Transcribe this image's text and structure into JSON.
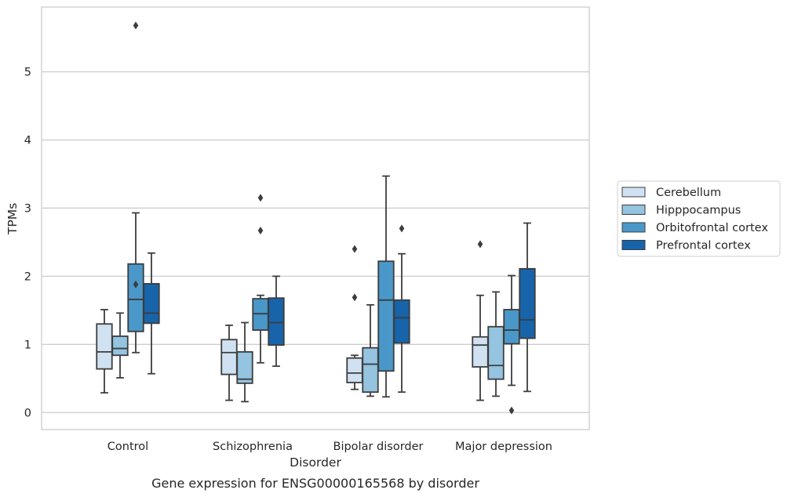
{
  "caption": "Gene expression for ENSG00000165568 by disorder",
  "chart_data": {
    "type": "box",
    "xlabel": "Disorder",
    "ylabel": "TPMs",
    "ylim": [
      -0.25,
      5.95
    ],
    "yticks": [
      0,
      1,
      2,
      3,
      4,
      5
    ],
    "grid": "horizontal",
    "legend_position": "right",
    "categories": [
      "Control",
      "Schizophrenia",
      "Bipolar disorder",
      "Major depression"
    ],
    "series": [
      {
        "name": "Cerebellum",
        "color": "#d0e1f2",
        "boxes": [
          {
            "whisker_low": 0.29,
            "q1": 0.64,
            "median": 0.89,
            "q3": 1.3,
            "whisker_high": 1.51,
            "outliers": []
          },
          {
            "whisker_low": 0.18,
            "q1": 0.56,
            "median": 0.88,
            "q3": 1.07,
            "whisker_high": 1.28,
            "outliers": []
          },
          {
            "whisker_low": 0.34,
            "q1": 0.44,
            "median": 0.58,
            "q3": 0.8,
            "whisker_high": 0.84,
            "outliers": [
              1.69,
              2.4
            ]
          },
          {
            "whisker_low": 0.18,
            "q1": 0.67,
            "median": 0.99,
            "q3": 1.11,
            "whisker_high": 1.72,
            "outliers": [
              2.47
            ]
          }
        ]
      },
      {
        "name": "Hipppocampus",
        "color": "#94c4df",
        "boxes": [
          {
            "whisker_low": 0.51,
            "q1": 0.84,
            "median": 0.94,
            "q3": 1.12,
            "whisker_high": 1.46,
            "outliers": []
          },
          {
            "whisker_low": 0.16,
            "q1": 0.43,
            "median": 0.49,
            "q3": 0.89,
            "whisker_high": 1.32,
            "outliers": []
          },
          {
            "whisker_low": 0.24,
            "q1": 0.3,
            "median": 0.71,
            "q3": 0.95,
            "whisker_high": 1.58,
            "outliers": []
          },
          {
            "whisker_low": 0.24,
            "q1": 0.49,
            "median": 0.69,
            "q3": 1.26,
            "whisker_high": 1.77,
            "outliers": []
          }
        ]
      },
      {
        "name": "Orbitofrontal cortex",
        "color": "#4a98c9",
        "boxes": [
          {
            "whisker_low": 0.88,
            "q1": 1.19,
            "median": 1.66,
            "q3": 2.18,
            "whisker_high": 2.93,
            "outliers": [
              5.68,
              1.88
            ]
          },
          {
            "whisker_low": 0.73,
            "q1": 1.21,
            "median": 1.45,
            "q3": 1.67,
            "whisker_high": 1.72,
            "outliers": [
              2.67,
              3.15
            ]
          },
          {
            "whisker_low": 0.23,
            "q1": 0.61,
            "median": 1.65,
            "q3": 2.22,
            "whisker_high": 3.47,
            "outliers": []
          },
          {
            "whisker_low": 0.4,
            "q1": 1.01,
            "median": 1.21,
            "q3": 1.51,
            "whisker_high": 2.01,
            "outliers": [
              0.03
            ]
          }
        ]
      },
      {
        "name": "Prefrontal cortex",
        "color": "#1764ab",
        "boxes": [
          {
            "whisker_low": 0.57,
            "q1": 1.31,
            "median": 1.46,
            "q3": 1.89,
            "whisker_high": 2.34,
            "outliers": []
          },
          {
            "whisker_low": 0.68,
            "q1": 0.99,
            "median": 1.32,
            "q3": 1.68,
            "whisker_high": 2.0,
            "outliers": []
          },
          {
            "whisker_low": 0.3,
            "q1": 1.02,
            "median": 1.39,
            "q3": 1.65,
            "whisker_high": 2.33,
            "outliers": [
              2.7
            ]
          },
          {
            "whisker_low": 0.31,
            "q1": 1.09,
            "median": 1.36,
            "q3": 2.11,
            "whisker_high": 2.78,
            "outliers": []
          }
        ]
      }
    ]
  }
}
